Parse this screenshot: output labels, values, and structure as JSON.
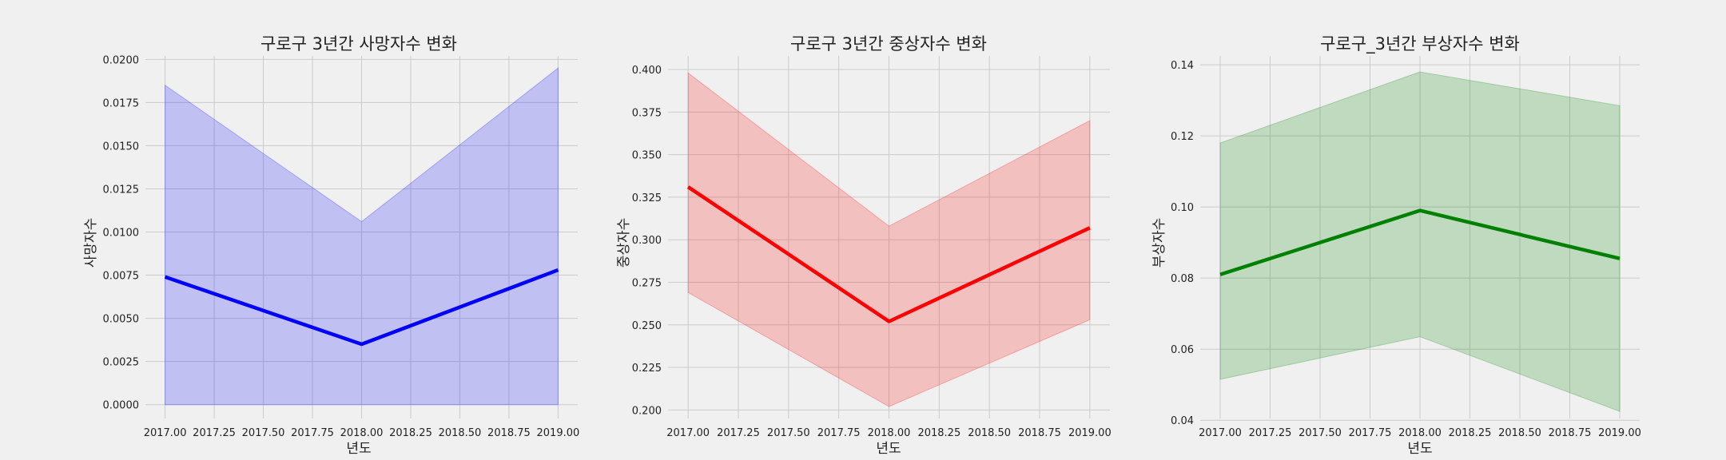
{
  "chart_data": [
    {
      "type": "line",
      "title": "구로구 3년간 사망자수 변화",
      "xlabel": "년도",
      "ylabel": "사망자수",
      "x": [
        2017,
        2018,
        2019
      ],
      "series": [
        {
          "values": [
            0.0074,
            0.0035,
            0.0078
          ],
          "ci_low": [
            0.0,
            0.0,
            0.0
          ],
          "ci_high": [
            0.0185,
            0.0106,
            0.0195
          ],
          "color": "#0000ff",
          "fill": "#0000ff"
        }
      ],
      "xlim": [
        2016.9,
        2019.1
      ],
      "ylim": [
        -0.0008,
        0.0202
      ],
      "xticks": [
        2017.0,
        2017.25,
        2017.5,
        2017.75,
        2018.0,
        2018.25,
        2018.5,
        2018.75,
        2019.0
      ],
      "xtick_labels": [
        "2017.00",
        "2017.25",
        "2017.50",
        "2017.75",
        "2018.00",
        "2018.25",
        "2018.50",
        "2018.75",
        "2019.00"
      ],
      "yticks": [
        0.0,
        0.0025,
        0.005,
        0.0075,
        0.01,
        0.0125,
        0.015,
        0.0175,
        0.02
      ],
      "ytick_labels": [
        "0.0000",
        "0.0025",
        "0.0050",
        "0.0075",
        "0.0100",
        "0.0125",
        "0.0150",
        "0.0175",
        "0.0200"
      ],
      "grid": true
    },
    {
      "type": "line",
      "title": "구로구 3년간 중상자수 변화",
      "xlabel": "년도",
      "ylabel": "중상자수",
      "x": [
        2017,
        2018,
        2019
      ],
      "series": [
        {
          "values": [
            0.331,
            0.252,
            0.307
          ],
          "ci_low": [
            0.269,
            0.202,
            0.253
          ],
          "ci_high": [
            0.398,
            0.308,
            0.37
          ],
          "color": "#ff0000",
          "fill": "#ff0000"
        }
      ],
      "xlim": [
        2016.9,
        2019.1
      ],
      "ylim": [
        0.195,
        0.408
      ],
      "xticks": [
        2017.0,
        2017.25,
        2017.5,
        2017.75,
        2018.0,
        2018.25,
        2018.5,
        2018.75,
        2019.0
      ],
      "xtick_labels": [
        "2017.00",
        "2017.25",
        "2017.50",
        "2017.75",
        "2018.00",
        "2018.25",
        "2018.50",
        "2018.75",
        "2019.00"
      ],
      "yticks": [
        0.2,
        0.225,
        0.25,
        0.275,
        0.3,
        0.325,
        0.35,
        0.375,
        0.4
      ],
      "ytick_labels": [
        "0.200",
        "0.225",
        "0.250",
        "0.275",
        "0.300",
        "0.325",
        "0.350",
        "0.375",
        "0.400"
      ],
      "grid": true
    },
    {
      "type": "line",
      "title": "구로구_3년간 부상자수 변화",
      "xlabel": "년도",
      "ylabel": "부상자수",
      "x": [
        2017,
        2018,
        2019
      ],
      "series": [
        {
          "values": [
            0.081,
            0.099,
            0.0855
          ],
          "ci_low": [
            0.0515,
            0.0635,
            0.0425
          ],
          "ci_high": [
            0.118,
            0.138,
            0.1285
          ],
          "color": "#008000",
          "fill": "#008000"
        }
      ],
      "xlim": [
        2016.9,
        2019.1
      ],
      "ylim": [
        0.0405,
        0.1425
      ],
      "xticks": [
        2017.0,
        2017.25,
        2017.5,
        2017.75,
        2018.0,
        2018.25,
        2018.5,
        2018.75,
        2019.0
      ],
      "xtick_labels": [
        "2017.00",
        "2017.25",
        "2017.50",
        "2017.75",
        "2018.00",
        "2018.25",
        "2018.50",
        "2018.75",
        "2019.00"
      ],
      "yticks": [
        0.04,
        0.06,
        0.08,
        0.1,
        0.12,
        0.14
      ],
      "ytick_labels": [
        "0.04",
        "0.06",
        "0.08",
        "0.10",
        "0.12",
        "0.14"
      ],
      "grid": true
    }
  ]
}
